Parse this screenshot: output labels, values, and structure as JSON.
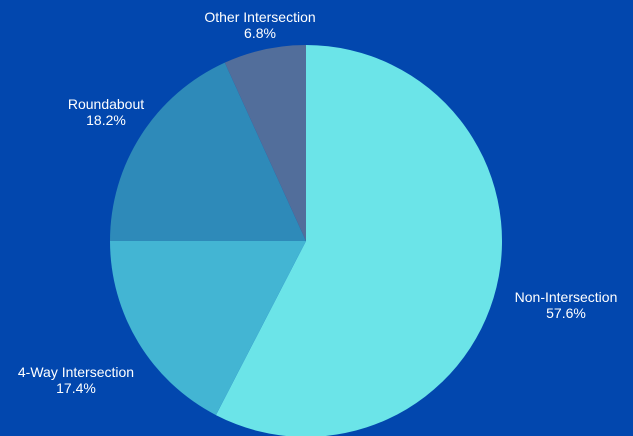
{
  "chart_data": {
    "type": "pie",
    "start_angle_deg": 0,
    "direction": "clockwise",
    "slices": [
      {
        "label": "Non-Intersection",
        "percent_label": "57.6%",
        "value": 57.6,
        "color": "#6BE4E8"
      },
      {
        "label": "4-Way Intersection",
        "percent_label": "17.4%",
        "value": 17.4,
        "color": "#43B5D3"
      },
      {
        "label": "Roundabout",
        "percent_label": "18.2%",
        "value": 18.2,
        "color": "#2E8AB9"
      },
      {
        "label": "Other Intersection",
        "percent_label": "6.8%",
        "value": 6.8,
        "color": "#526E9B"
      }
    ],
    "background": "#0247AE",
    "label_color": "#FFFFFF",
    "legend": "none"
  }
}
